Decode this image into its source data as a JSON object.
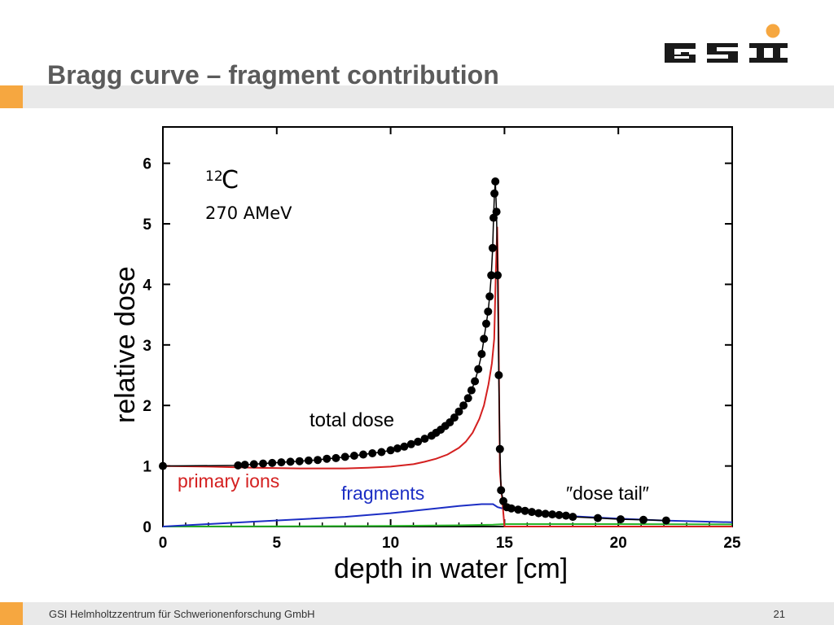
{
  "slide": {
    "title": "Bragg curve – fragment contribution",
    "footer": "GSI Helmholtzzentrum für Schwerionenforschung GmbH",
    "page_number": "21",
    "logo_text": "GSI",
    "colors": {
      "accent": "#f6a740",
      "band": "#e9e9e9",
      "title": "#5b5b5b"
    }
  },
  "chart_data": {
    "type": "line",
    "xlabel": "depth in water [cm]",
    "ylabel": "relative dose",
    "xlim": [
      0,
      25
    ],
    "ylim": [
      0,
      6.6
    ],
    "xticks": [
      0,
      5,
      10,
      15,
      20,
      25
    ],
    "yticks": [
      0,
      1,
      2,
      3,
      4,
      5,
      6
    ],
    "grid": false,
    "annotations": {
      "isotope_mass": "12",
      "isotope_symbol": "C",
      "energy": "270  AMeV",
      "total_dose": "total dose",
      "primary_ions": "primary ions",
      "fragments": "fragments",
      "dose_tail": "″dose tail″"
    },
    "series": [
      {
        "name": "total dose",
        "style": "markers",
        "color": "#000000",
        "x": [
          0,
          3.3,
          3.6,
          4.0,
          4.4,
          4.8,
          5.2,
          5.6,
          6.0,
          6.4,
          6.8,
          7.2,
          7.6,
          8.0,
          8.4,
          8.8,
          9.2,
          9.6,
          10.0,
          10.3,
          10.6,
          10.9,
          11.2,
          11.5,
          11.8,
          12.0,
          12.2,
          12.4,
          12.6,
          12.8,
          13.0,
          13.2,
          13.4,
          13.55,
          13.7,
          13.85,
          14.0,
          14.1,
          14.2,
          14.28,
          14.35,
          14.42,
          14.48,
          14.52,
          14.56,
          14.6,
          14.65,
          14.7,
          14.75,
          14.8,
          14.85,
          14.95,
          15.1,
          15.3,
          15.6,
          15.9,
          16.2,
          16.5,
          16.8,
          17.1,
          17.4,
          17.7,
          18.0,
          19.1,
          20.1,
          21.1,
          22.1
        ],
        "y": [
          1.0,
          1.01,
          1.02,
          1.03,
          1.04,
          1.05,
          1.06,
          1.07,
          1.08,
          1.09,
          1.1,
          1.12,
          1.13,
          1.15,
          1.17,
          1.19,
          1.21,
          1.23,
          1.26,
          1.29,
          1.32,
          1.36,
          1.4,
          1.45,
          1.5,
          1.55,
          1.6,
          1.66,
          1.72,
          1.8,
          1.9,
          2.0,
          2.12,
          2.25,
          2.4,
          2.6,
          2.85,
          3.1,
          3.35,
          3.55,
          3.8,
          4.15,
          4.6,
          5.1,
          5.5,
          5.7,
          5.2,
          4.15,
          2.5,
          1.28,
          0.6,
          0.42,
          0.32,
          0.3,
          0.28,
          0.26,
          0.24,
          0.22,
          0.21,
          0.2,
          0.19,
          0.18,
          0.16,
          0.14,
          0.12,
          0.11,
          0.1
        ]
      },
      {
        "name": "primary ions",
        "style": "line",
        "color": "#d42020",
        "x": [
          0,
          2,
          4,
          6,
          8,
          9,
          10,
          11,
          11.5,
          12,
          12.5,
          13,
          13.3,
          13.6,
          13.9,
          14.1,
          14.3,
          14.45,
          14.55,
          14.62,
          14.68,
          14.72,
          14.76,
          14.8,
          15,
          25
        ],
        "y": [
          1.0,
          0.99,
          0.97,
          0.96,
          0.96,
          0.97,
          0.99,
          1.03,
          1.07,
          1.12,
          1.19,
          1.3,
          1.4,
          1.55,
          1.78,
          2.0,
          2.35,
          2.7,
          3.1,
          4.2,
          4.95,
          4.0,
          2.4,
          0.9,
          0.0,
          0.0
        ]
      },
      {
        "name": "fragments",
        "style": "line",
        "color": "#1c2ec4",
        "x": [
          0,
          2,
          4,
          6,
          8,
          10,
          11,
          12,
          13,
          14,
          14.5,
          14.7,
          15,
          16,
          18,
          20,
          22,
          25
        ],
        "y": [
          0.0,
          0.04,
          0.08,
          0.12,
          0.16,
          0.22,
          0.26,
          0.3,
          0.34,
          0.37,
          0.37,
          0.32,
          0.29,
          0.24,
          0.17,
          0.13,
          0.1,
          0.07
        ]
      },
      {
        "name": "",
        "style": "line",
        "color": "#27b427",
        "x": [
          0,
          5,
          10,
          13,
          14.5,
          15,
          17,
          20,
          25
        ],
        "y": [
          0.0,
          0.003,
          0.01,
          0.02,
          0.03,
          0.04,
          0.04,
          0.04,
          0.035
        ]
      }
    ]
  }
}
